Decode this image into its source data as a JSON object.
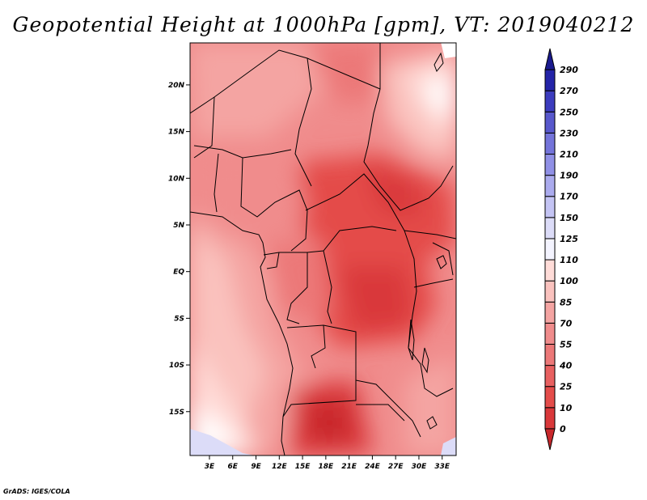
{
  "chart_data": {
    "type": "heatmap",
    "title": "Geopotential Height at 1000hPa [gpm], VT: 2019040212",
    "x_ticks": [
      "3E",
      "6E",
      "9E",
      "12E",
      "15E",
      "18E",
      "21E",
      "24E",
      "27E",
      "30E",
      "33E"
    ],
    "x_tick_values": [
      3,
      6,
      9,
      12,
      15,
      18,
      21,
      24,
      27,
      30,
      33
    ],
    "y_ticks": [
      "20N",
      "15N",
      "10N",
      "5N",
      "EQ",
      "5S",
      "10S",
      "15S"
    ],
    "y_tick_values": [
      20,
      15,
      10,
      5,
      0,
      -5,
      -10,
      -15
    ],
    "xlim": [
      0.5,
      34.8
    ],
    "ylim": [
      -19.7,
      24.5
    ],
    "colorbar": {
      "levels": [
        "0",
        "10",
        "25",
        "40",
        "55",
        "70",
        "85",
        "100",
        "110",
        "125",
        "150",
        "170",
        "190",
        "210",
        "230",
        "250",
        "270",
        "290"
      ],
      "colors": [
        "#c8282c",
        "#d9383a",
        "#e44c4a",
        "#e86060",
        "#ec7878",
        "#f08c8c",
        "#f4a4a2",
        "#fac2be",
        "#ffdcd8",
        "#f4f4ff",
        "#dcdcf8",
        "#c4c4f4",
        "#ababee",
        "#9090e6",
        "#7474da",
        "#5858cc",
        "#3c3cbe",
        "#2424a8",
        "#1a1a8e"
      ]
    },
    "grid": false,
    "colorbar_position": "right"
  },
  "footer": {
    "credit": "GrADS: IGES/COLA"
  }
}
